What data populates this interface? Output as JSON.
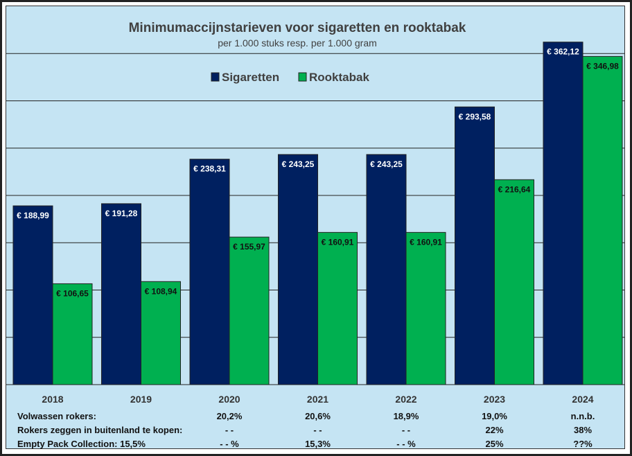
{
  "chart_data": {
    "type": "bar",
    "title": "Minimumaccijnstarieven voor sigaretten en rooktabak",
    "subtitle": "per 1.000 stuks resp. per 1.000 gram",
    "categories": [
      "2018",
      "2019",
      "2020",
      "2021",
      "2022",
      "2023",
      "2024"
    ],
    "series": [
      {
        "name": "Sigaretten",
        "color": "#002060",
        "values": [
          188.99,
          191.28,
          238.31,
          243.25,
          243.25,
          293.58,
          362.12
        ],
        "labels": [
          "€ 188,99",
          "€ 191,28",
          "€ 238,31",
          "€ 243,25",
          "€ 243,25",
          "€ 293,58",
          "€ 362,12"
        ]
      },
      {
        "name": "Rooktabak",
        "color": "#00B050",
        "values": [
          106.65,
          108.94,
          155.97,
          160.91,
          160.91,
          216.64,
          346.98
        ],
        "labels": [
          "€ 106,65",
          "€ 108,94",
          "€ 155,97",
          "€ 160,91",
          "€ 160,91",
          "€ 216,64",
          "€ 346,98"
        ]
      }
    ],
    "ylim": [
      0,
      400
    ],
    "grid": true,
    "legend": "top-center"
  },
  "table": [
    {
      "label": "Volwassen rokers:",
      "values": [
        "",
        "",
        "20,2%",
        "20,6%",
        "18,9%",
        "19,0%",
        "n.n.b."
      ]
    },
    {
      "label": "Rokers zeggen in buitenland te kopen:",
      "values": [
        "",
        "",
        "- -",
        "- -",
        "- -",
        "22%",
        "38%"
      ]
    },
    {
      "label": "Empty Pack Collection:  15,5%",
      "values": [
        "",
        "",
        "- - %",
        "15,3%",
        "- - %",
        "25%",
        "??%"
      ]
    }
  ]
}
